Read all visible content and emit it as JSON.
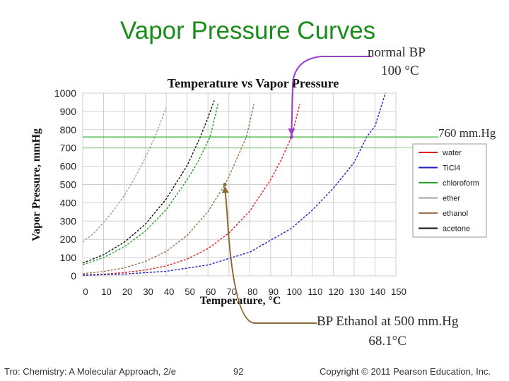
{
  "slide": {
    "title": "Vapor Pressure Curves",
    "footer_left": "Tro: Chemistry: A Molecular Approach, 2/e",
    "footer_page": "92",
    "footer_right": "Copyright © 2011 Pearson Education, Inc."
  },
  "annotations": {
    "bp_line1": "normal BP",
    "bp_line2": "100 °C",
    "pressure_line": "760 mm.Hg",
    "ethanol_line1": "BP Ethanol at 500 mm.Hg",
    "ethanol_line2": "68.1°C"
  },
  "chart_data": {
    "type": "line",
    "title": "Temperature vs Vapor Pressure",
    "xlabel": "Temperature, °C",
    "ylabel": "Vapor Pressure, mmHg",
    "xlim": [
      0,
      150
    ],
    "ylim": [
      0,
      1000
    ],
    "xticks": [
      0,
      10,
      20,
      30,
      40,
      50,
      60,
      70,
      80,
      90,
      100,
      110,
      120,
      130,
      140,
      150
    ],
    "yticks": [
      0,
      100,
      200,
      300,
      400,
      500,
      600,
      700,
      800,
      900,
      1000
    ],
    "grid": true,
    "legend_position": "right",
    "reference_line": {
      "y": 760,
      "label": "760 mm.Hg",
      "color": "#33b233"
    },
    "series": [
      {
        "name": "water",
        "color": "#e02020",
        "x": [
          0,
          10,
          20,
          30,
          40,
          50,
          60,
          70,
          80,
          90,
          95,
          100,
          104
        ],
        "y": [
          5,
          9,
          18,
          32,
          55,
          92,
          149,
          234,
          355,
          526,
          634,
          760,
          940
        ]
      },
      {
        "name": "TiCl4",
        "color": "#2020c0",
        "x": [
          0,
          20,
          40,
          60,
          80,
          100,
          110,
          120,
          130,
          136,
          140,
          145
        ],
        "y": [
          3,
          10,
          25,
          60,
          130,
          260,
          360,
          480,
          620,
          760,
          820,
          1000
        ]
      },
      {
        "name": "chloroform",
        "color": "#2ca02c",
        "x": [
          0,
          10,
          20,
          30,
          40,
          50,
          55,
          61,
          65
        ],
        "y": [
          61,
          100,
          160,
          245,
          362,
          526,
          620,
          760,
          950
        ]
      },
      {
        "name": "ether",
        "color": "#a0a0a0",
        "x": [
          0,
          5,
          10,
          15,
          20,
          25,
          30,
          34.6,
          40
        ],
        "y": [
          185,
          230,
          292,
          361,
          442,
          537,
          647,
          760,
          920
        ]
      },
      {
        "name": "ethanol",
        "color": "#a0704a",
        "x": [
          0,
          10,
          20,
          30,
          40,
          50,
          60,
          68.1,
          70,
          78.4,
          82
        ],
        "y": [
          12,
          24,
          44,
          79,
          134,
          221,
          352,
          500,
          542,
          760,
          940
        ]
      },
      {
        "name": "acetone",
        "color": "#111111",
        "x": [
          0,
          10,
          20,
          30,
          40,
          50,
          56.3,
          60,
          63
        ],
        "y": [
          70,
          116,
          185,
          283,
          421,
          603,
          760,
          866,
          960
        ]
      }
    ],
    "arrows": [
      {
        "name": "normal-bp",
        "target": [
          100,
          760
        ],
        "color": "#9b3ec8"
      },
      {
        "name": "ethanol-bp",
        "target": [
          68.1,
          500
        ],
        "color": "#8a6a30"
      }
    ]
  }
}
